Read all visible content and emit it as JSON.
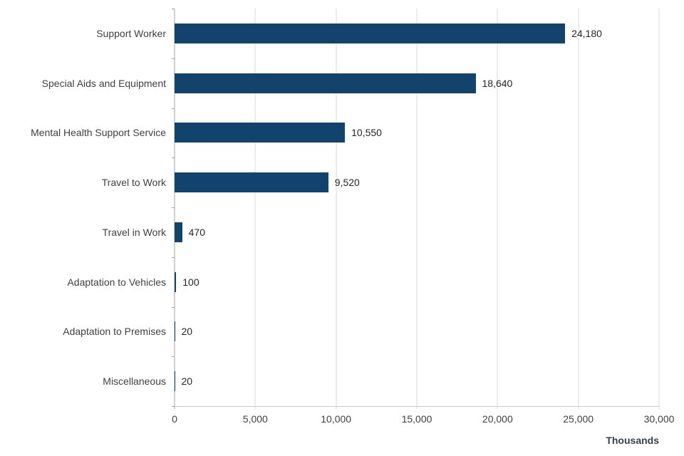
{
  "chart_data": {
    "type": "bar",
    "orientation": "horizontal",
    "title": "",
    "xlabel": "Thousands",
    "ylabel": "",
    "grid": true,
    "legend": false,
    "xlim": [
      0,
      30000
    ],
    "bar_color": "#12436d",
    "categories": [
      "Support Worker",
      "Special Aids and Equipment",
      "Mental Health Support Service",
      "Travel to Work",
      "Travel in Work",
      "Adaptation to Vehicles",
      "Adaptation to Premises",
      "Miscellaneous"
    ],
    "values": [
      24180,
      18640,
      10550,
      9520,
      470,
      100,
      20,
      20
    ],
    "value_labels": [
      "24,180",
      "18,640",
      "10,550",
      "9,520",
      "470",
      "100",
      "20",
      "20"
    ],
    "xticks": [
      {
        "value": 0,
        "label": "0"
      },
      {
        "value": 5000,
        "label": "5,000"
      },
      {
        "value": 10000,
        "label": "10,000"
      },
      {
        "value": 15000,
        "label": "15,000"
      },
      {
        "value": 20000,
        "label": "20,000"
      },
      {
        "value": 25000,
        "label": "25,000"
      },
      {
        "value": 30000,
        "label": "30,000"
      }
    ]
  }
}
